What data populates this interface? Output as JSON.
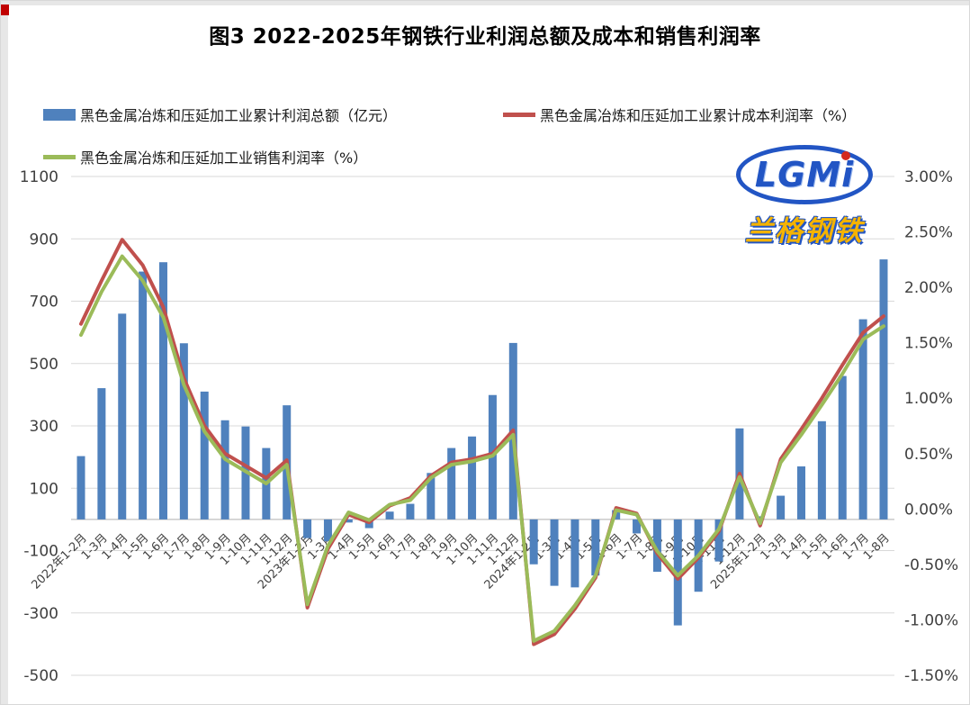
{
  "title": "图3 2022-2025年钢铁行业利润总额及成本和销售利润率",
  "logo": {
    "text": "LGMi",
    "subtext": "兰格钢铁"
  },
  "colors": {
    "bar": "#4F81BD",
    "cost_line": "#C0504D",
    "sales_line": "#9BBB59",
    "grid": "#d9d9d9",
    "axis_line": "#bfbfbf"
  },
  "legend": {
    "profit": {
      "label": "黑色金属冶炼和压延加工业累计利润总额（亿元）"
    },
    "cost": {
      "label": "黑色金属冶炼和压延加工业累计成本利润率（%）"
    },
    "sales": {
      "label": "黑色金属冶炼和压延加工业销售利润率（%）"
    }
  },
  "chart_data": {
    "type": "bar",
    "subtype": "combo-bar-line-dual-axis",
    "grid": true,
    "legend_position": "top",
    "categories": [
      "2022年1-2月",
      "1-3月",
      "1-4月",
      "1-5月",
      "1-6月",
      "1-7月",
      "1-8月",
      "1-9月",
      "1-10月",
      "1-11月",
      "1-12月",
      "2023年1-2月",
      "1-3月",
      "1-4月",
      "1-5月",
      "1-6月",
      "1-7月",
      "1-8月",
      "1-9月",
      "1-10月",
      "1-11月",
      "1-12月",
      "2024年1-2月",
      "1-3月",
      "1-4月",
      "1-5月",
      "1-6月",
      "1-7月",
      "1-8月",
      "1-9月",
      "1-10月",
      "1-11月",
      "1-12月",
      "2025年1-2月",
      "1-3月",
      "1-4月",
      "1-5月",
      "1-6月",
      "1-7月",
      "1-8月"
    ],
    "series": [
      {
        "name": "黑色金属冶炼和压延加工业累计利润总额（亿元）",
        "type": "bar",
        "axis": "left",
        "color": "#4F81BD",
        "values": [
          203,
          421,
          660,
          795,
          825,
          565,
          410,
          318,
          298,
          229,
          366,
          -60,
          -70,
          -10,
          -28,
          25,
          50,
          149,
          229,
          266,
          399,
          566,
          -144,
          -213,
          -218,
          -180,
          30,
          -45,
          -168,
          -340,
          -232,
          -135,
          292,
          10,
          76,
          170,
          315,
          460,
          642,
          834
        ]
      },
      {
        "name": "黑色金属冶炼和压延加工业累计成本利润率（%）",
        "type": "line",
        "axis": "right",
        "color": "#C0504D",
        "values": [
          1.67,
          2.06,
          2.43,
          2.2,
          1.82,
          1.18,
          0.75,
          0.5,
          0.39,
          0.28,
          0.44,
          -0.89,
          -0.36,
          -0.05,
          -0.12,
          0.03,
          0.1,
          0.3,
          0.42,
          0.45,
          0.5,
          0.71,
          -1.22,
          -1.13,
          -0.9,
          -0.62,
          0.01,
          -0.04,
          -0.4,
          -0.63,
          -0.44,
          -0.2,
          0.32,
          -0.15,
          0.45,
          0.72,
          1.0,
          1.3,
          1.59,
          1.74
        ]
      },
      {
        "name": "黑色金属冶炼和压延加工业销售利润率（%）",
        "type": "line",
        "axis": "right",
        "color": "#9BBB59",
        "values": [
          1.57,
          1.96,
          2.28,
          2.06,
          1.73,
          1.12,
          0.7,
          0.45,
          0.34,
          0.23,
          0.4,
          -0.86,
          -0.33,
          -0.03,
          -0.1,
          0.04,
          0.08,
          0.28,
          0.4,
          0.43,
          0.48,
          0.67,
          -1.19,
          -1.1,
          -0.87,
          -0.6,
          -0.01,
          -0.05,
          -0.38,
          -0.6,
          -0.42,
          -0.18,
          0.29,
          -0.13,
          0.42,
          0.67,
          0.94,
          1.22,
          1.53,
          1.65
        ]
      }
    ],
    "left_axis": {
      "title": "",
      "min": -500,
      "max": 1100,
      "step": 200,
      "values": [
        1100,
        900,
        700,
        500,
        300,
        100,
        -100,
        -300,
        -500
      ],
      "labels": [
        "1100",
        "900",
        "700",
        "500",
        "300",
        "100",
        "-100",
        "-300",
        "-500"
      ]
    },
    "right_axis": {
      "title": "",
      "min": -1.5,
      "max": 3.0,
      "step": 0.5,
      "values": [
        3.0,
        2.5,
        2.0,
        1.5,
        1.0,
        0.5,
        0.0,
        -0.5,
        -1.0,
        -1.5
      ],
      "labels": [
        "3.00%",
        "2.50%",
        "2.00%",
        "1.50%",
        "1.00%",
        "0.50%",
        "0.00%",
        "-0.50%",
        "-1.00%",
        "-1.50%"
      ]
    }
  }
}
